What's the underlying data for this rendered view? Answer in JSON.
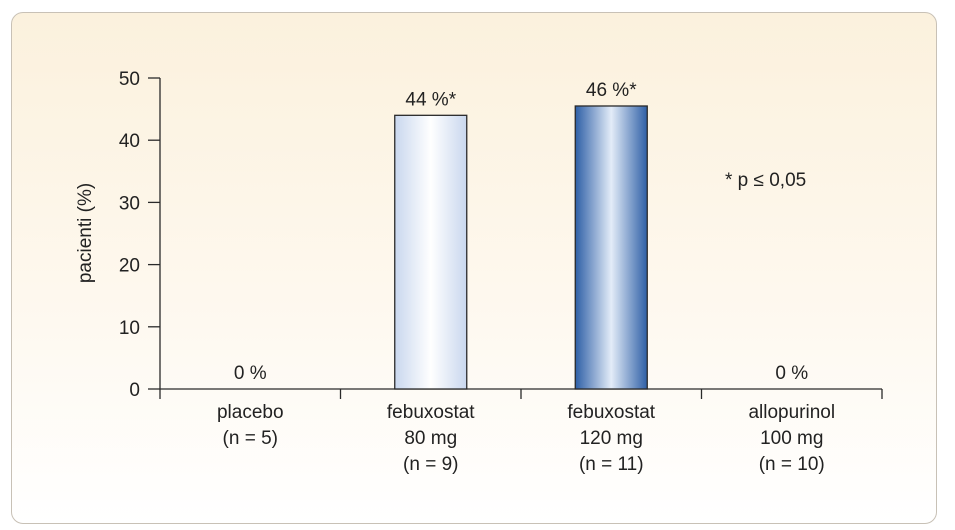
{
  "chart_data": {
    "type": "bar",
    "ylabel": "pacienti (%)",
    "xlabel": "",
    "ylim": [
      0,
      50
    ],
    "yticks": [
      0,
      10,
      20,
      30,
      40,
      50
    ],
    "grid": false,
    "categories": [
      [
        "placebo",
        "(n = 5)"
      ],
      [
        "febuxostat",
        "80 mg",
        "(n = 9)"
      ],
      [
        "febuxostat",
        "120 mg",
        "(n = 11)"
      ],
      [
        "allopurinol",
        "100 mg",
        "(n = 10)"
      ]
    ],
    "values": [
      0,
      44,
      45.5,
      0
    ],
    "data_labels": [
      "0 %",
      "44 %*",
      "46 %*",
      "0 %"
    ],
    "bar_styles": [
      "none",
      "light-blue",
      "dark-blue",
      "none"
    ],
    "annotation": "* p ≤ 0,05"
  },
  "colors": {
    "axis": "#2a2a2a",
    "bar_light_edge": "#c9d7ee",
    "bar_light_center": "#ffffff",
    "bar_dark_edge": "#2e5fa6",
    "bar_dark_center": "#e3ecf8",
    "bar_stroke": "#2a2a2a"
  }
}
